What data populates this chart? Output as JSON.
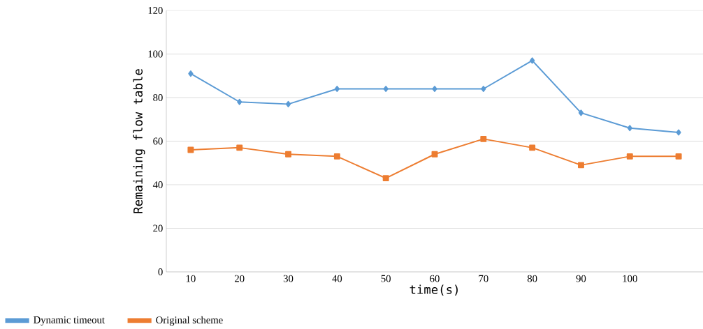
{
  "chart_data": {
    "type": "line",
    "xlabel": "time(s)",
    "ylabel": "Remaining flow table",
    "categories": [
      "10",
      "20",
      "30",
      "40",
      "50",
      "60",
      "70",
      "80",
      "90",
      "100",
      null
    ],
    "series": [
      {
        "name": "Dynamic timeout",
        "color": "#5b9bd5",
        "marker": "diamond",
        "values": [
          91,
          78,
          77,
          84,
          84,
          84,
          84,
          97,
          73,
          66,
          64
        ]
      },
      {
        "name": "Original scheme",
        "color": "#ed7d31",
        "marker": "square",
        "values": [
          56,
          57,
          54,
          53,
          43,
          54,
          61,
          57,
          49,
          53,
          53
        ]
      }
    ],
    "ylim": [
      0,
      120
    ],
    "yticks": [
      0,
      20,
      40,
      60,
      80,
      100,
      120
    ],
    "grid": "y",
    "legend": "bottom left",
    "line_style": "solid"
  }
}
